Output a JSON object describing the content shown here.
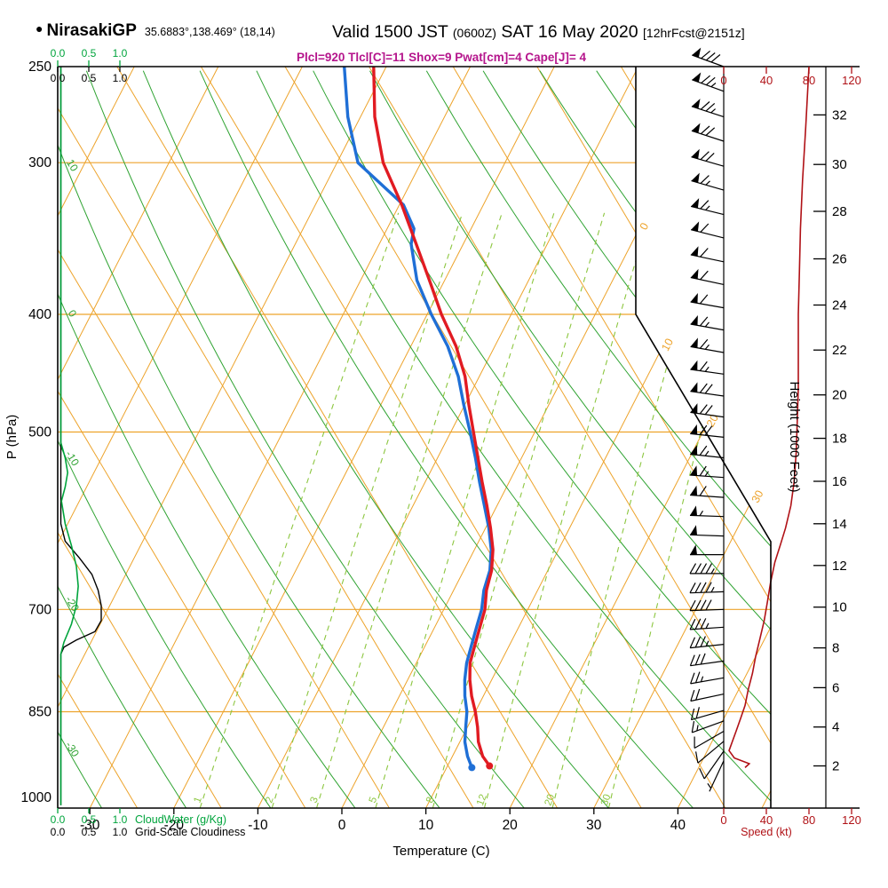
{
  "header": {
    "bullet": "●",
    "station": "NirasakiGP",
    "coords": "35.6883°,138.469° (18,14)",
    "valid_prefix": "Valid 1500 JST",
    "valid_zulu": "(0600Z)",
    "valid_date": "SAT 16 May 2020",
    "forecast_ref": "[12hrFcst@2151z]",
    "params": "Plcl=920 Tlcl[C]=11 Shox=9 Pwat[cm]=4 Cape[J]= 4"
  },
  "axes": {
    "pressure_label": "P (hPa)",
    "pressure_ticks": [
      250,
      300,
      400,
      500,
      700,
      850,
      1000
    ],
    "temp_label": "Temperature (C)",
    "temp_ticks": [
      -30,
      -20,
      -10,
      0,
      10,
      20,
      30,
      40
    ],
    "height_label": "Height (1000 Feet)",
    "speed_label": "Speed (kt)",
    "speed_ticks": [
      0,
      40,
      80,
      120
    ],
    "cloud_scale": [
      "0.0",
      "0.5",
      "1.0"
    ],
    "cloudwater_label": "CloudWater (g/Kg)",
    "cloudiness_label": "Grid-Scale Cloudiness"
  },
  "chart_data": {
    "type": "skewt_sounding",
    "pressure_range_hpa": [
      250,
      1020
    ],
    "isotherm_exit_labels_c": [
      0,
      10,
      20,
      30
    ],
    "dry_adiabat_labels_c": [
      10,
      0,
      -10,
      -20,
      -30
    ],
    "mixing_ratio_lines_gkg": [
      1,
      2,
      3,
      5,
      8,
      12,
      20,
      30
    ],
    "height_ticks_kft": [
      [
        2,
        942
      ],
      [
        4,
        875
      ],
      [
        6,
        812
      ],
      [
        8,
        753
      ],
      [
        10,
        697
      ],
      [
        12,
        644
      ],
      [
        14,
        595
      ],
      [
        16,
        549
      ],
      [
        18,
        506
      ],
      [
        20,
        466
      ],
      [
        22,
        428
      ],
      [
        24,
        393
      ],
      [
        26,
        360
      ],
      [
        28,
        329
      ],
      [
        30,
        301
      ],
      [
        32,
        274
      ]
    ],
    "temperature_c": [
      [
        942,
        15.0
      ],
      [
        925,
        13.6
      ],
      [
        900,
        12.2
      ],
      [
        875,
        11.2
      ],
      [
        850,
        10.0
      ],
      [
        825,
        8.6
      ],
      [
        800,
        7.4
      ],
      [
        775,
        6.4
      ],
      [
        750,
        5.9
      ],
      [
        725,
        5.4
      ],
      [
        700,
        4.9
      ],
      [
        675,
        3.9
      ],
      [
        650,
        3.3
      ],
      [
        625,
        2.2
      ],
      [
        600,
        0.6
      ],
      [
        575,
        -1.2
      ],
      [
        550,
        -3.2
      ],
      [
        525,
        -5.2
      ],
      [
        500,
        -7.3
      ],
      [
        475,
        -9.5
      ],
      [
        450,
        -11.7
      ],
      [
        425,
        -14.6
      ],
      [
        400,
        -18.3
      ],
      [
        375,
        -21.8
      ],
      [
        350,
        -25.6
      ],
      [
        325,
        -29.7
      ],
      [
        300,
        -34.5
      ],
      [
        275,
        -38.3
      ],
      [
        250,
        -41.5
      ]
    ],
    "dewpoint_c": [
      [
        945,
        13.0
      ],
      [
        925,
        11.8
      ],
      [
        900,
        10.6
      ],
      [
        875,
        9.8
      ],
      [
        850,
        9.0
      ],
      [
        825,
        7.8
      ],
      [
        800,
        6.8
      ],
      [
        775,
        6.0
      ],
      [
        750,
        5.5
      ],
      [
        725,
        5.0
      ],
      [
        700,
        4.5
      ],
      [
        675,
        3.6
      ],
      [
        650,
        3.1
      ],
      [
        625,
        2.0
      ],
      [
        600,
        0.4
      ],
      [
        575,
        -1.5
      ],
      [
        550,
        -3.5
      ],
      [
        525,
        -5.5
      ],
      [
        500,
        -7.7
      ],
      [
        475,
        -10.1
      ],
      [
        450,
        -12.5
      ],
      [
        425,
        -15.6
      ],
      [
        400,
        -19.5
      ],
      [
        375,
        -23.3
      ],
      [
        350,
        -26.2
      ],
      [
        340,
        -26.8
      ],
      [
        325,
        -29.5
      ],
      [
        300,
        -37.5
      ],
      [
        275,
        -41.5
      ],
      [
        250,
        -45.0
      ]
    ],
    "wind_barbs": [
      [
        250,
        290,
        80
      ],
      [
        262,
        290,
        75
      ],
      [
        275,
        288,
        75
      ],
      [
        288,
        288,
        70
      ],
      [
        302,
        286,
        70
      ],
      [
        316,
        286,
        65
      ],
      [
        331,
        284,
        65
      ],
      [
        346,
        284,
        60
      ],
      [
        362,
        282,
        60
      ],
      [
        378,
        282,
        60
      ],
      [
        395,
        280,
        60
      ],
      [
        412,
        280,
        65
      ],
      [
        430,
        280,
        65
      ],
      [
        448,
        278,
        65
      ],
      [
        467,
        278,
        70
      ],
      [
        486,
        278,
        70
      ],
      [
        505,
        276,
        70
      ],
      [
        525,
        276,
        65
      ],
      [
        545,
        274,
        65
      ],
      [
        566,
        274,
        60
      ],
      [
        587,
        272,
        55
      ],
      [
        609,
        272,
        50
      ],
      [
        631,
        270,
        50
      ],
      [
        654,
        270,
        45
      ],
      [
        677,
        268,
        45
      ],
      [
        700,
        268,
        40
      ],
      [
        724,
        266,
        35
      ],
      [
        748,
        264,
        35
      ],
      [
        772,
        262,
        30
      ],
      [
        797,
        260,
        25
      ],
      [
        822,
        258,
        20
      ],
      [
        848,
        254,
        18
      ],
      [
        865,
        250,
        15
      ],
      [
        882,
        240,
        12
      ],
      [
        899,
        230,
        10
      ],
      [
        916,
        215,
        8
      ],
      [
        933,
        205,
        5
      ]
    ],
    "wind_speed_kt": [
      [
        250,
        80
      ],
      [
        280,
        77
      ],
      [
        310,
        74
      ],
      [
        340,
        72
      ],
      [
        370,
        71
      ],
      [
        400,
        70
      ],
      [
        430,
        70
      ],
      [
        460,
        70
      ],
      [
        490,
        69
      ],
      [
        520,
        68
      ],
      [
        550,
        66
      ],
      [
        575,
        63
      ],
      [
        600,
        58
      ],
      [
        620,
        53
      ],
      [
        640,
        48
      ],
      [
        665,
        44
      ],
      [
        690,
        41
      ],
      [
        715,
        38
      ],
      [
        740,
        34
      ],
      [
        765,
        30
      ],
      [
        790,
        27
      ],
      [
        815,
        23
      ],
      [
        840,
        20
      ],
      [
        860,
        16
      ],
      [
        880,
        12
      ],
      [
        900,
        8
      ],
      [
        915,
        5
      ],
      [
        928,
        10
      ],
      [
        938,
        24
      ],
      [
        945,
        20
      ]
    ],
    "cloud_water_gkg": [
      [
        250,
        0.05
      ],
      [
        510,
        0.05
      ],
      [
        525,
        0.12
      ],
      [
        540,
        0.16
      ],
      [
        555,
        0.12
      ],
      [
        570,
        0.06
      ],
      [
        595,
        0.12
      ],
      [
        620,
        0.22
      ],
      [
        645,
        0.3
      ],
      [
        670,
        0.33
      ],
      [
        695,
        0.3
      ],
      [
        720,
        0.22
      ],
      [
        745,
        0.1
      ],
      [
        762,
        0.05
      ],
      [
        1015,
        0.05
      ]
    ],
    "grid_scale_cloudiness": [
      [
        250,
        0.05
      ],
      [
        595,
        0.05
      ],
      [
        615,
        0.12
      ],
      [
        635,
        0.35
      ],
      [
        655,
        0.55
      ],
      [
        675,
        0.65
      ],
      [
        695,
        0.7
      ],
      [
        715,
        0.7
      ],
      [
        730,
        0.6
      ],
      [
        742,
        0.3
      ],
      [
        752,
        0.1
      ],
      [
        762,
        0.05
      ],
      [
        1015,
        0.05
      ]
    ],
    "colors": {
      "grid_orange": "#eda32b",
      "adiabat_green": "#2fa332",
      "mixing_green": "#8cc63f",
      "cloud_green": "#00a43c",
      "trace_red": "#e11b22",
      "trace_blue": "#1f6fd6",
      "speed_dark_red": "#b01116",
      "magenta": "#b5158c",
      "black": "#000000"
    }
  }
}
